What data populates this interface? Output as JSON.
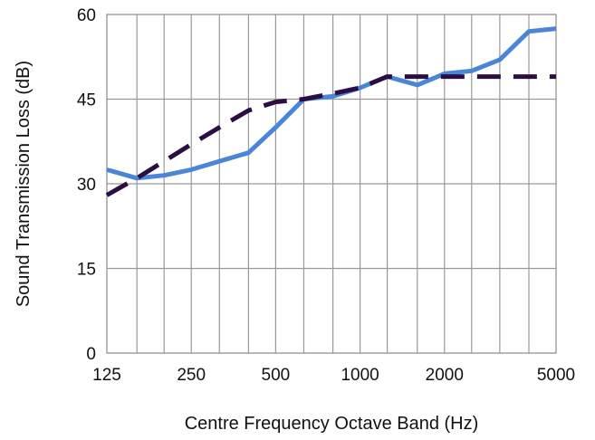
{
  "chart_data": {
    "type": "line",
    "title": "",
    "xlabel": "Centre Frequency Octave Band (Hz)",
    "ylabel": "Sound Transmission Loss (dB)",
    "x_scale": "log",
    "xlim": [
      125,
      5000
    ],
    "ylim": [
      0,
      60
    ],
    "x_tick_labels": [
      "125",
      "250",
      "500",
      "1000",
      "2000",
      "5000"
    ],
    "x_tick_values": [
      125,
      250,
      500,
      1000,
      2000,
      5000
    ],
    "y_tick_labels": [
      "0",
      "15",
      "30",
      "45",
      "60"
    ],
    "y_ticks": [
      0,
      15,
      30,
      45,
      60
    ],
    "grid": true,
    "legend": "none",
    "x": [
      125,
      160,
      200,
      250,
      315,
      400,
      500,
      630,
      800,
      1000,
      1250,
      1600,
      2000,
      2500,
      3150,
      4000,
      5000
    ],
    "series": [
      {
        "style": "solid",
        "color": "#4a86d8",
        "values": [
          32.5,
          31,
          31.5,
          32.5,
          34,
          35.5,
          40,
          45,
          45.5,
          47,
          49,
          47.5,
          49.5,
          50,
          52,
          57,
          57.5
        ]
      },
      {
        "style": "dashed",
        "color": "#2b0f43",
        "values": [
          28,
          31,
          34,
          37,
          40,
          43,
          44.5,
          45,
          46,
          47,
          49,
          49,
          49,
          49,
          49,
          49,
          49
        ]
      }
    ]
  }
}
